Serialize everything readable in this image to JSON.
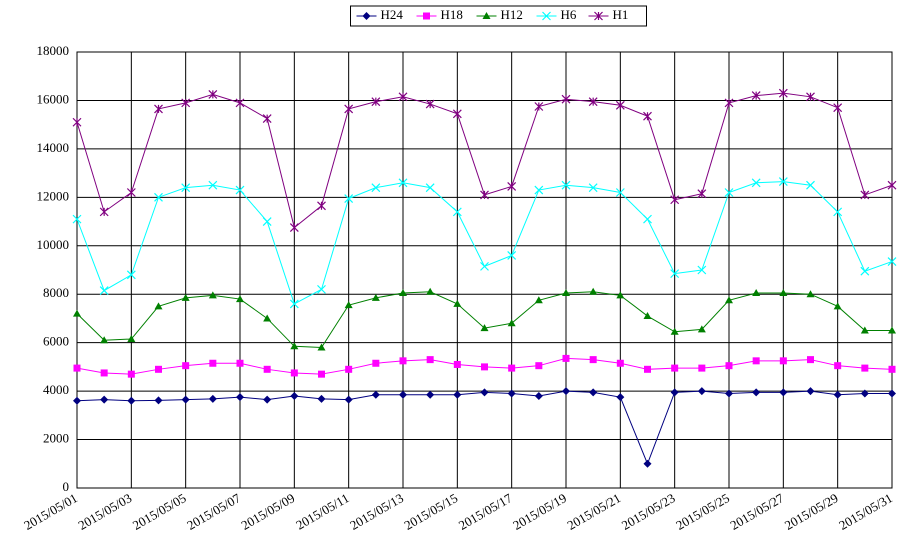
{
  "chart_data": {
    "type": "line",
    "categories": [
      "2015/05/01",
      null,
      "2015/05/03",
      null,
      "2015/05/05",
      null,
      "2015/05/07",
      null,
      "2015/05/09",
      null,
      "2015/05/11",
      null,
      "2015/05/13",
      null,
      "2015/05/15",
      null,
      "2015/05/17",
      null,
      "2015/05/19",
      null,
      "2015/05/21",
      null,
      "2015/05/23",
      null,
      "2015/05/25",
      null,
      "2015/05/27",
      null,
      "2015/05/29",
      null,
      "2015/05/31"
    ],
    "series": [
      {
        "name": "H24",
        "color": "#000080",
        "marker": "diamond",
        "values": [
          3600,
          3650,
          3600,
          3620,
          3650,
          3680,
          3750,
          3650,
          3800,
          3680,
          3650,
          3850,
          3850,
          3850,
          3850,
          3950,
          3900,
          3800,
          4000,
          3950,
          3750,
          1000,
          3950,
          4000,
          3900,
          3950,
          3950,
          4000,
          3850,
          3900,
          3900
        ]
      },
      {
        "name": "H18",
        "color": "#ff00ff",
        "marker": "square",
        "values": [
          4950,
          4750,
          4700,
          4900,
          5050,
          5150,
          5150,
          4900,
          4750,
          4700,
          4900,
          5150,
          5250,
          5300,
          5100,
          5000,
          4950,
          5050,
          5350,
          5300,
          5150,
          4900,
          4950,
          4950,
          5050,
          5250,
          5250,
          5300,
          5050,
          4950,
          4900
        ]
      },
      {
        "name": "H12",
        "color": "#008000",
        "marker": "triangle",
        "values": [
          7200,
          6100,
          6150,
          7500,
          7850,
          7950,
          7800,
          7000,
          5850,
          5800,
          7550,
          7850,
          8050,
          8100,
          7600,
          6600,
          6800,
          7750,
          8050,
          8100,
          7950,
          7100,
          6450,
          6550,
          7750,
          8050,
          8050,
          8000,
          7500,
          6500,
          6500
        ]
      },
      {
        "name": "H6",
        "color": "#00ffff",
        "marker": "cross",
        "values": [
          11100,
          8150,
          8800,
          12000,
          12400,
          12500,
          12300,
          11000,
          7600,
          8200,
          11950,
          12400,
          12600,
          12400,
          11400,
          9150,
          9600,
          12300,
          12500,
          12400,
          12200,
          11100,
          8850,
          9000,
          12200,
          12600,
          12650,
          12500,
          11400,
          8950,
          9350
        ]
      },
      {
        "name": "H1",
        "color": "#800080",
        "marker": "star",
        "values": [
          15100,
          11400,
          12200,
          15650,
          15900,
          16250,
          15900,
          15250,
          10750,
          11650,
          15650,
          15950,
          16150,
          15850,
          15450,
          12100,
          12450,
          15750,
          16050,
          15950,
          15800,
          15350,
          11900,
          12150,
          15900,
          16200,
          16300,
          16150,
          15700,
          12100,
          12500
        ]
      }
    ],
    "ylim": [
      0,
      18000
    ],
    "yticks": [
      0,
      2000,
      4000,
      6000,
      8000,
      10000,
      12000,
      14000,
      16000,
      18000
    ],
    "grid": true,
    "legend": "top"
  }
}
